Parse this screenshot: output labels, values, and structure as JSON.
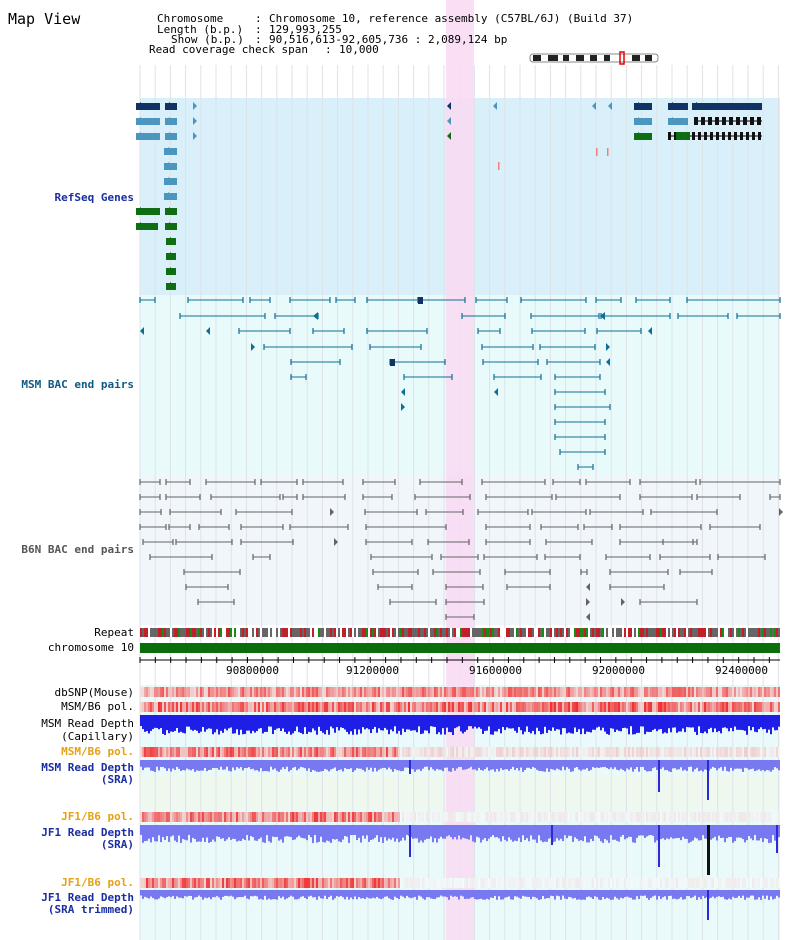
{
  "title": "Map View",
  "info": {
    "chromosome_key": "Chromosome",
    "chromosome_val": "Chromosome 10, reference assembly (C57BL/6J) (Build 37)",
    "length_key": "Length (b.p.)",
    "length_val": "129,993,255",
    "show_key": "Show (b.p.)",
    "show_val": "90,516,613-92,605,736 : 2,089,124 bp",
    "span_key": "Read coverage check span",
    "span_val": "10,000"
  },
  "tracks": {
    "refseq": "RefSeq Genes",
    "msm_bac": "MSM BAC end pairs",
    "b6n_bac": "B6N BAC end pairs",
    "repeat": "Repeat",
    "chrom": "chromosome 10",
    "dbsnp": "dbSNP(Mouse)",
    "msm_pol": "MSM/B6 pol.",
    "msm_depth_cap_1": "MSM Read Depth",
    "msm_depth_cap_2": "(Capillary)",
    "msm_pol2": "MSM/B6 pol.",
    "msm_depth_sra_1": "MSM Read Depth",
    "msm_depth_sra_2": "(SRA)",
    "jf1_pol": "JF1/B6 pol.",
    "jf1_depth_1": "JF1 Read Depth",
    "jf1_depth_2": "(SRA)",
    "jf1_pol2": "JF1/B6 pol.",
    "jf1_trim_1": "JF1 Read Depth",
    "jf1_trim_2": "(SRA trimmed)"
  },
  "ruler": {
    "ticks": [
      "90800000",
      "91200000",
      "91600000",
      "92000000",
      "92400000"
    ]
  },
  "colors": {
    "refseq_bg": "#d9f0fa",
    "track_bg": "#e8fafa",
    "highlight": "#f9d9f2",
    "gene_dark": "#0f3364",
    "gene_mid": "#4a96be",
    "gene_green": "#0f6e14",
    "msm_pair": "#0f6e96",
    "b6n_pair": "#646464",
    "chrom_bar": "#0a6e0a",
    "depth_blue": "#1e1ee6",
    "depth_light": "#7878f0",
    "label_blue": "#1a2ea0",
    "label_teal": "#0f5a82",
    "label_orange": "#e6a014"
  }
}
